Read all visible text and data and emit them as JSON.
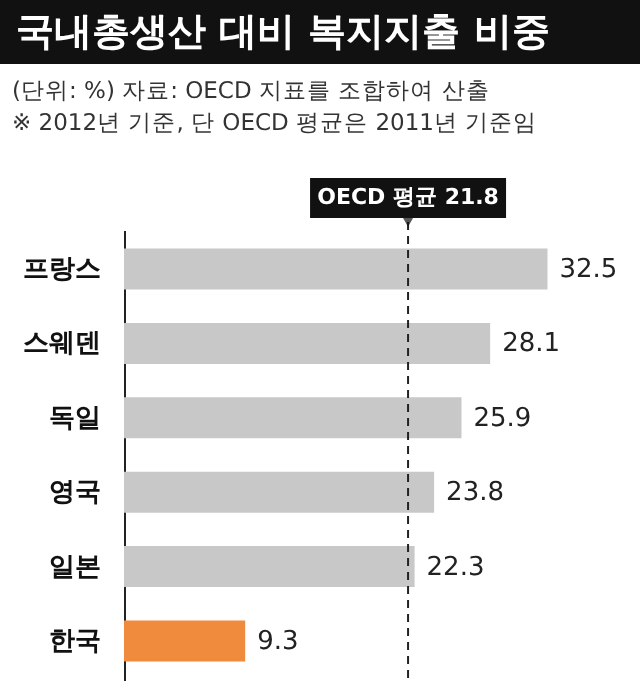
{
  "chart_data": {
    "type": "bar",
    "orientation": "horizontal",
    "title": "국내총생산 대비 복지지출 비중",
    "subtitle": "(단위: %) 자료: OECD 지표를 조합하여 산출",
    "annotations": [
      "※ 2012년 기준, 단 OECD 평균은 2011년 기준임"
    ],
    "categories": [
      "프랑스",
      "스웨덴",
      "독일",
      "영국",
      "일본",
      "한국"
    ],
    "values": [
      32.5,
      28.1,
      25.9,
      23.8,
      22.3,
      9.3
    ],
    "colors": [
      "#c8c8c8",
      "#c8c8c8",
      "#c8c8c8",
      "#c8c8c8",
      "#c8c8c8",
      "#f08a3c"
    ],
    "xlim": [
      0,
      33
    ],
    "data_labels": true,
    "tick_labels": "y",
    "ref_lines": [
      {
        "axis": "x",
        "value": 21.8,
        "label": "OECD 평균 21.8",
        "color": "#222222",
        "line_style": "dashed"
      }
    ]
  }
}
